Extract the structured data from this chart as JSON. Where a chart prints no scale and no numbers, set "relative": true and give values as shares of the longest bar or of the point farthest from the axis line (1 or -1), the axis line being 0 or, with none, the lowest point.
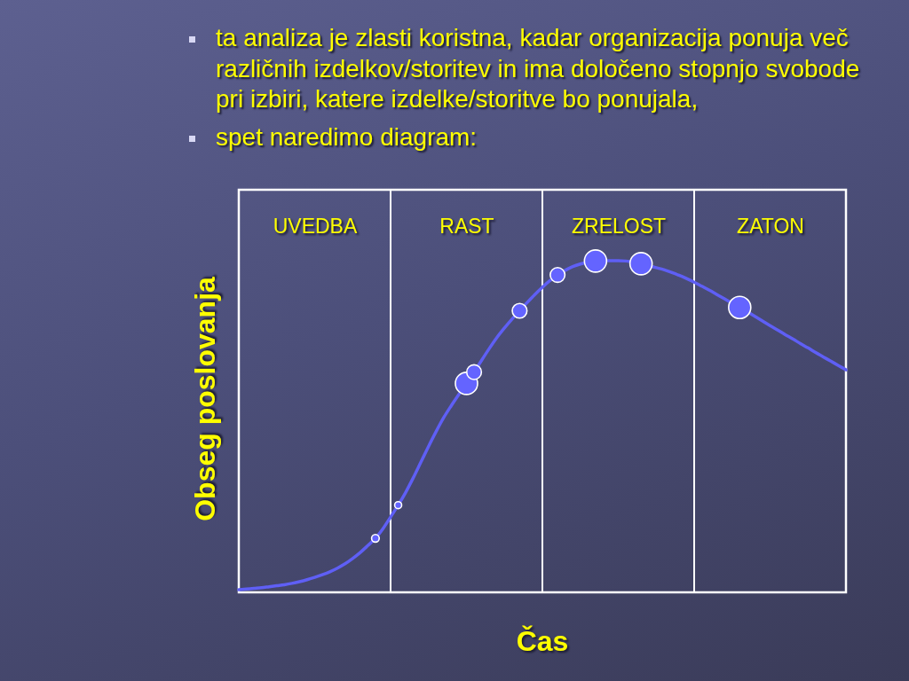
{
  "chart_data": {
    "type": "line",
    "relative": true,
    "xlabel": "Čas",
    "ylabel": "Obseg poslovanja",
    "annotations": [
      "ta analiza je zlasti koristna, kadar organizacija ponuja več različnih izdelkov/storitev in ima določeno stopnjo svobode pri izbiri, katere izdelke/storitve bo ponujala,",
      "spet naredimo diagram:"
    ],
    "categories": [
      null,
      null,
      null,
      null,
      null,
      null,
      null,
      null,
      null,
      null,
      "UVEDBA",
      null,
      null,
      null,
      null,
      null,
      null,
      null,
      null,
      null,
      null,
      null,
      null,
      null,
      null,
      null,
      null,
      null,
      null,
      null,
      "RAST",
      null,
      null,
      null,
      null,
      null,
      null,
      null,
      null,
      null,
      null,
      null,
      null,
      null,
      null,
      null,
      null,
      null,
      null,
      null,
      "ZRELOST",
      null,
      null,
      null,
      null,
      null,
      null,
      null,
      null,
      null,
      null,
      null,
      null,
      null,
      null,
      null,
      null,
      null,
      null,
      null,
      "ZATON",
      null,
      null,
      null,
      null,
      null,
      null,
      null,
      null,
      null,
      null
    ],
    "series": [
      {
        "color": "#5f5ff5",
        "values": [
          0.008,
          0.01,
          0.012,
          0.014,
          0.017,
          0.02,
          0.023,
          0.027,
          0.032,
          0.038,
          0.045,
          0.053,
          0.062,
          0.073,
          0.086,
          0.102,
          0.12,
          0.141,
          0.163,
          0.192,
          0.227,
          0.263,
          0.302,
          0.346,
          0.393,
          0.44,
          0.485,
          0.527,
          0.563,
          0.597,
          0.63,
          0.664,
          0.7,
          0.735,
          0.768,
          0.797,
          0.824,
          0.849,
          0.874,
          0.898,
          0.92,
          0.94,
          0.957,
          0.971,
          0.982,
          0.99,
          0.996,
          0.999,
          1.0,
          1.0,
          1.0,
          0.999,
          0.996,
          0.991,
          0.985,
          0.979,
          0.973,
          0.965,
          0.956,
          0.946,
          0.935,
          0.923,
          0.911,
          0.898,
          0.885,
          0.872,
          0.859,
          0.846,
          0.832,
          0.818,
          0.804,
          0.791,
          0.777,
          0.764,
          0.75,
          0.737,
          0.723,
          0.71,
          0.697,
          0.684,
          0.671
        ]
      },
      {
        "type": "bubble",
        "color": "#6464ff",
        "values": [
          null,
          null,
          null,
          null,
          null,
          null,
          null,
          null,
          null,
          null,
          null,
          null,
          null,
          null,
          null,
          null,
          null,
          null,
          0.163,
          null,
          null,
          0.263,
          null,
          null,
          null,
          null,
          null,
          null,
          null,
          null,
          0.63,
          0.664,
          null,
          null,
          null,
          null,
          null,
          0.849,
          null,
          null,
          null,
          null,
          0.957,
          null,
          null,
          null,
          null,
          0.999,
          null,
          null,
          null,
          null,
          null,
          0.991,
          null,
          null,
          null,
          null,
          null,
          null,
          null,
          null,
          null,
          null,
          null,
          null,
          0.859,
          null,
          null,
          null,
          null,
          null,
          null,
          null,
          null,
          null,
          null,
          null,
          null,
          null,
          null
        ],
        "sizes": [
          null,
          null,
          null,
          null,
          null,
          null,
          null,
          null,
          null,
          null,
          null,
          null,
          null,
          null,
          null,
          null,
          null,
          null,
          0.12,
          null,
          null,
          0.1,
          null,
          null,
          null,
          null,
          null,
          null,
          null,
          null,
          1,
          0.44,
          null,
          null,
          null,
          null,
          null,
          0.44,
          null,
          null,
          null,
          null,
          0.44,
          null,
          null,
          null,
          null,
          1,
          null,
          null,
          null,
          null,
          null,
          1,
          null,
          null,
          null,
          null,
          null,
          null,
          null,
          null,
          null,
          null,
          null,
          null,
          1,
          null,
          null,
          null,
          null,
          null,
          null,
          null,
          null,
          null,
          null,
          null,
          null,
          null,
          null
        ]
      }
    ]
  }
}
